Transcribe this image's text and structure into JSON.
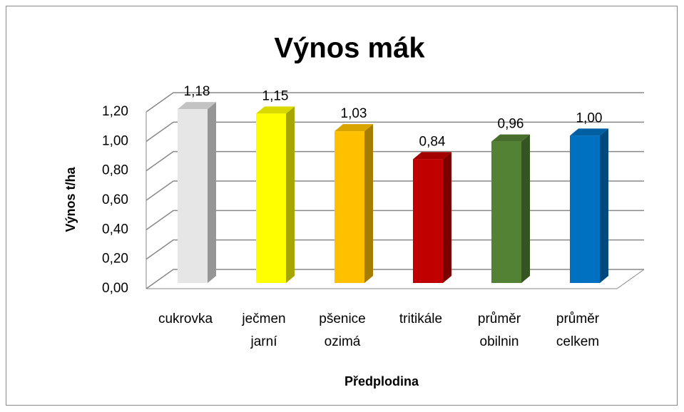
{
  "chart_data": {
    "type": "bar3d",
    "title": "Výnos mák",
    "x_label": "Předplodina",
    "y_label": "Výnos t/ha",
    "categories": [
      "cukrovka",
      "ječmen jarní",
      "pšenice ozimá",
      "tritikále",
      "průměr obilnin",
      "průměr celkem"
    ],
    "values": [
      1.18,
      1.15,
      1.03,
      0.84,
      0.96,
      1.0
    ],
    "value_labels": [
      "1,18",
      "1,15",
      "1,03",
      "0,84",
      "0,96",
      "1,00"
    ],
    "colors": [
      "#e6e6e6",
      "#ffff00",
      "#ffc000",
      "#c00000",
      "#548235",
      "#0070c0"
    ],
    "ylim": [
      0,
      1.2
    ],
    "yticks": [
      {
        "value": 0,
        "label": "0,00"
      },
      {
        "value": 0.2,
        "label": "0,20"
      },
      {
        "value": 0.4,
        "label": "0,40"
      },
      {
        "value": 0.6,
        "label": "0,60"
      },
      {
        "value": 0.8,
        "label": "0,80"
      },
      {
        "value": 1.0,
        "label": "1,00"
      },
      {
        "value": 1.2,
        "label": "1,20"
      }
    ],
    "grid": true
  }
}
